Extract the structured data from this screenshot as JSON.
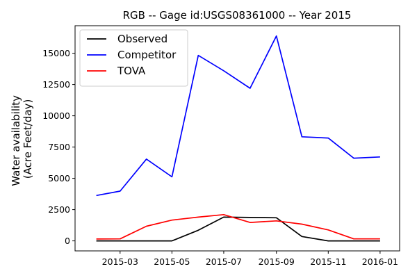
{
  "chart_data": {
    "type": "line",
    "title": "RGB -- Gage id:USGS08361000 -- Year 2015",
    "xlabel": "",
    "ylabel_lines": [
      "Water availability",
      "(Acre Feet/day)"
    ],
    "x": [
      "2015-02-01",
      "2015-03-01",
      "2015-04-01",
      "2015-05-01",
      "2015-06-01",
      "2015-07-01",
      "2015-08-01",
      "2015-09-01",
      "2015-10-01",
      "2015-11-01",
      "2015-12-01",
      "2016-01-01"
    ],
    "x_ticks": [
      "2015-03",
      "2015-05",
      "2015-07",
      "2015-09",
      "2015-11",
      "2016-01"
    ],
    "x_range": [
      "2015-01-07",
      "2016-01-24"
    ],
    "y_ticks": [
      "0",
      "2500",
      "5000",
      "7500",
      "10000",
      "12500",
      "15000"
    ],
    "ylim": [
      -800,
      17200
    ],
    "grid": false,
    "legend_position": "top-left",
    "series": [
      {
        "name": "Observed",
        "color": "#000000",
        "values": [
          0,
          0,
          0,
          0,
          850,
          1900,
          1870,
          1850,
          350,
          0,
          0,
          0
        ]
      },
      {
        "name": "Competitor",
        "color": "#0000ff",
        "values": [
          3630,
          3980,
          6540,
          5120,
          14830,
          13600,
          12200,
          16380,
          8320,
          8220,
          6610,
          6710
        ]
      },
      {
        "name": "TOVA",
        "color": "#ff0000",
        "values": [
          150,
          160,
          1170,
          1660,
          1900,
          2100,
          1470,
          1600,
          1340,
          880,
          160,
          160
        ]
      }
    ]
  }
}
